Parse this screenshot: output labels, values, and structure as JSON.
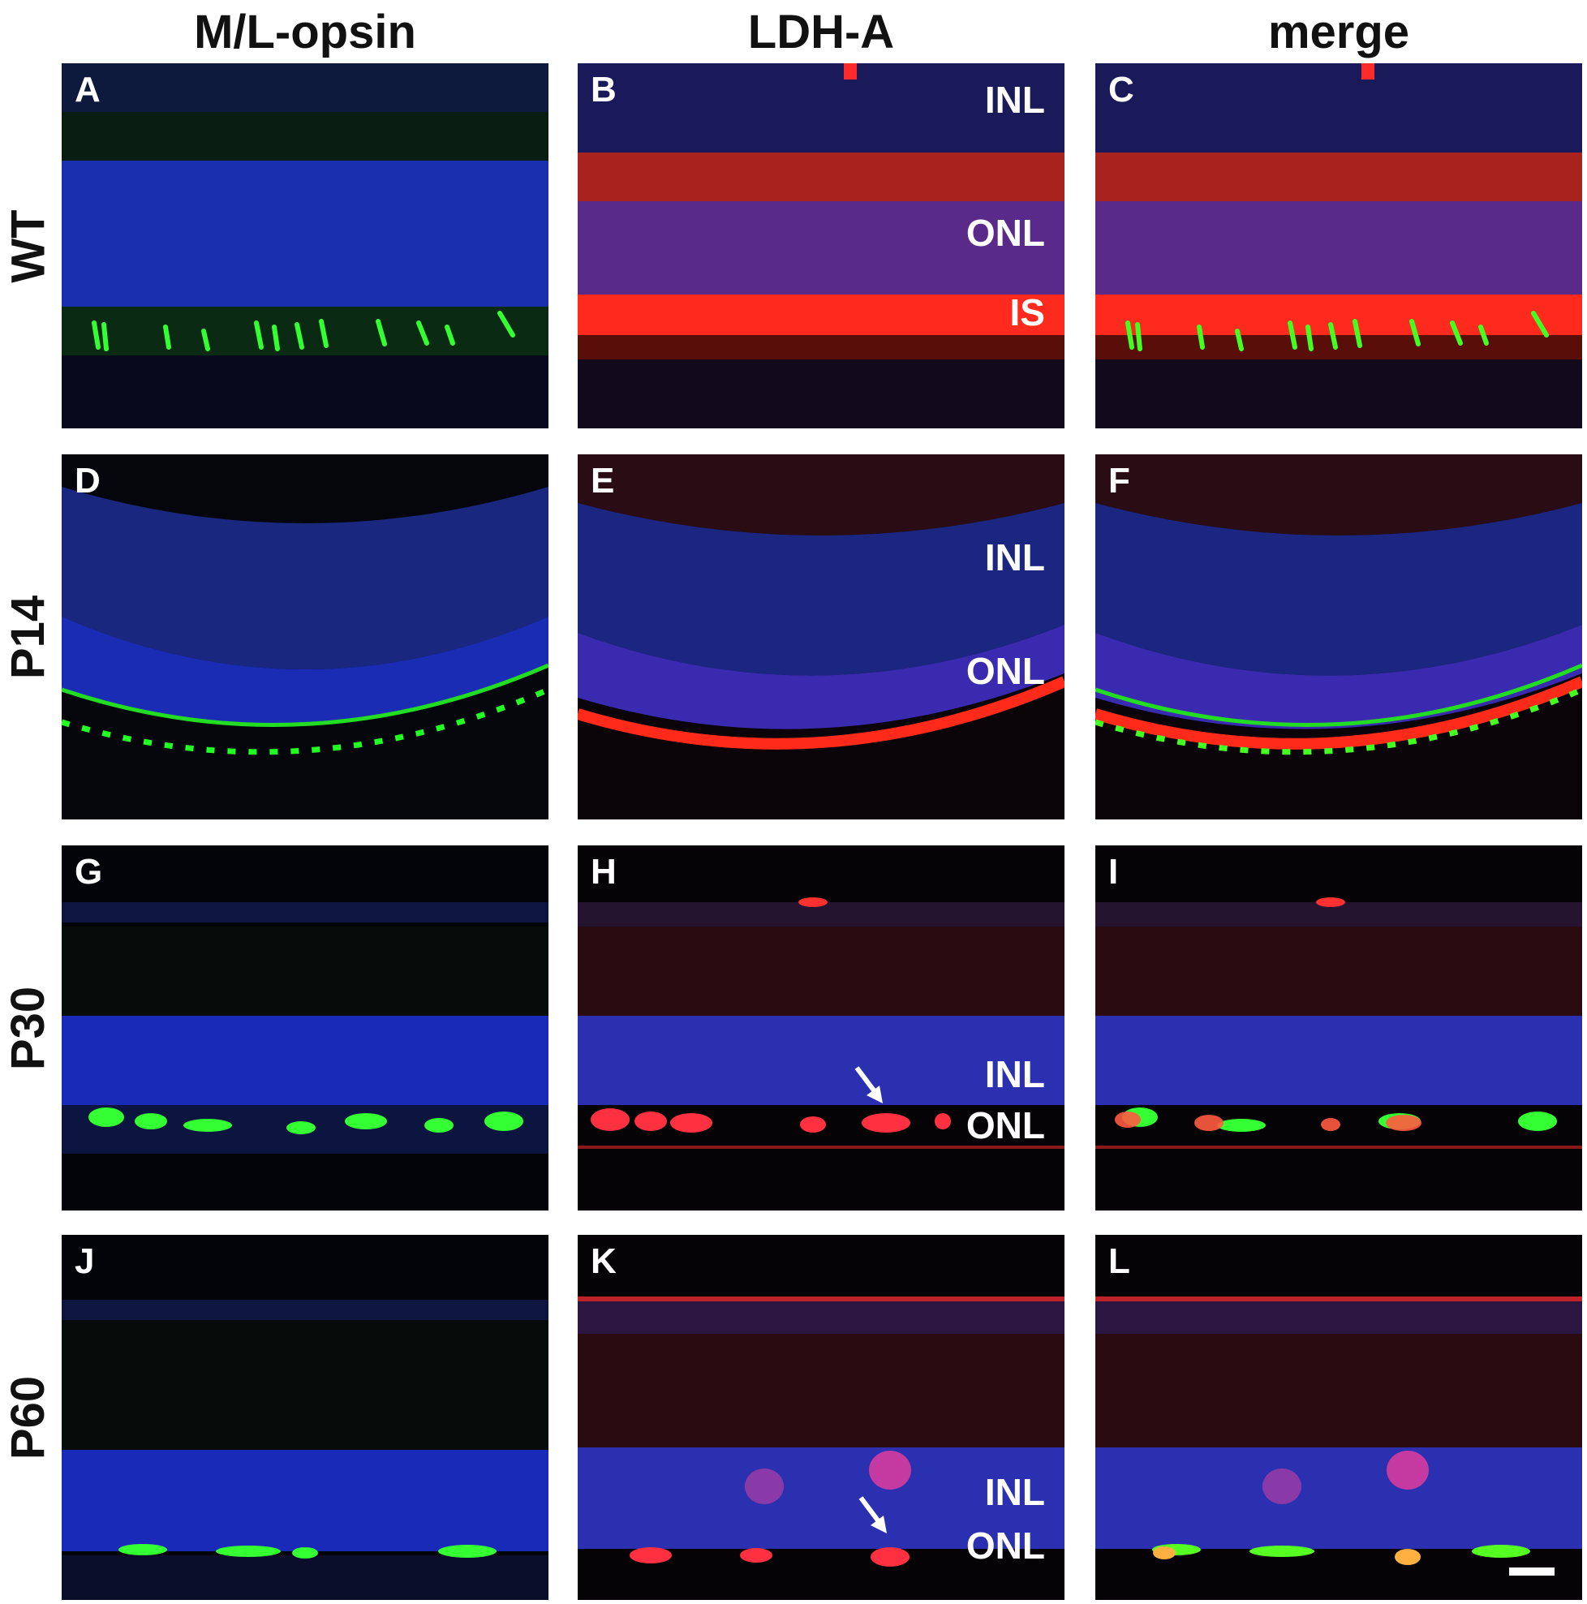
{
  "columns": [
    "M/L-opsin",
    "LDH-A",
    "merge"
  ],
  "rows": [
    "WT",
    "P14",
    "P30",
    "P60"
  ],
  "panels": [
    "A",
    "B",
    "C",
    "D",
    "E",
    "F",
    "G",
    "H",
    "I",
    "J",
    "K",
    "L"
  ],
  "layer_labels": {
    "inl": "INL",
    "onl": "ONL",
    "is": "IS"
  },
  "channel_colors": {
    "dapi": "#2233c8",
    "opsin": "#22ee22",
    "ldha": "#ff2020"
  },
  "icons": [
    "arrow-icon",
    "scale-bar"
  ]
}
